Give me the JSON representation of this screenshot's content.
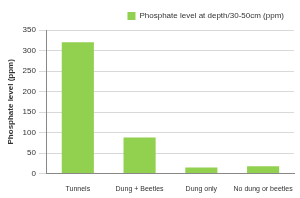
{
  "chart_data": {
    "type": "bar",
    "y_label": "Phosphate level (ppm)",
    "categories": [
      "Tunnels",
      "Dung + Beetles",
      "Dung only",
      "No dung or beetles"
    ],
    "series": [
      {
        "name": "Phosphate level at depth/30-50cm (ppm)",
        "color": "#92d050",
        "values": [
          320,
          88,
          15,
          18
        ]
      }
    ],
    "ylim": [
      0,
      350
    ],
    "yticks": [
      0,
      50,
      100,
      150,
      200,
      250,
      300,
      350
    ],
    "grid": true,
    "legend": "upper-right"
  }
}
